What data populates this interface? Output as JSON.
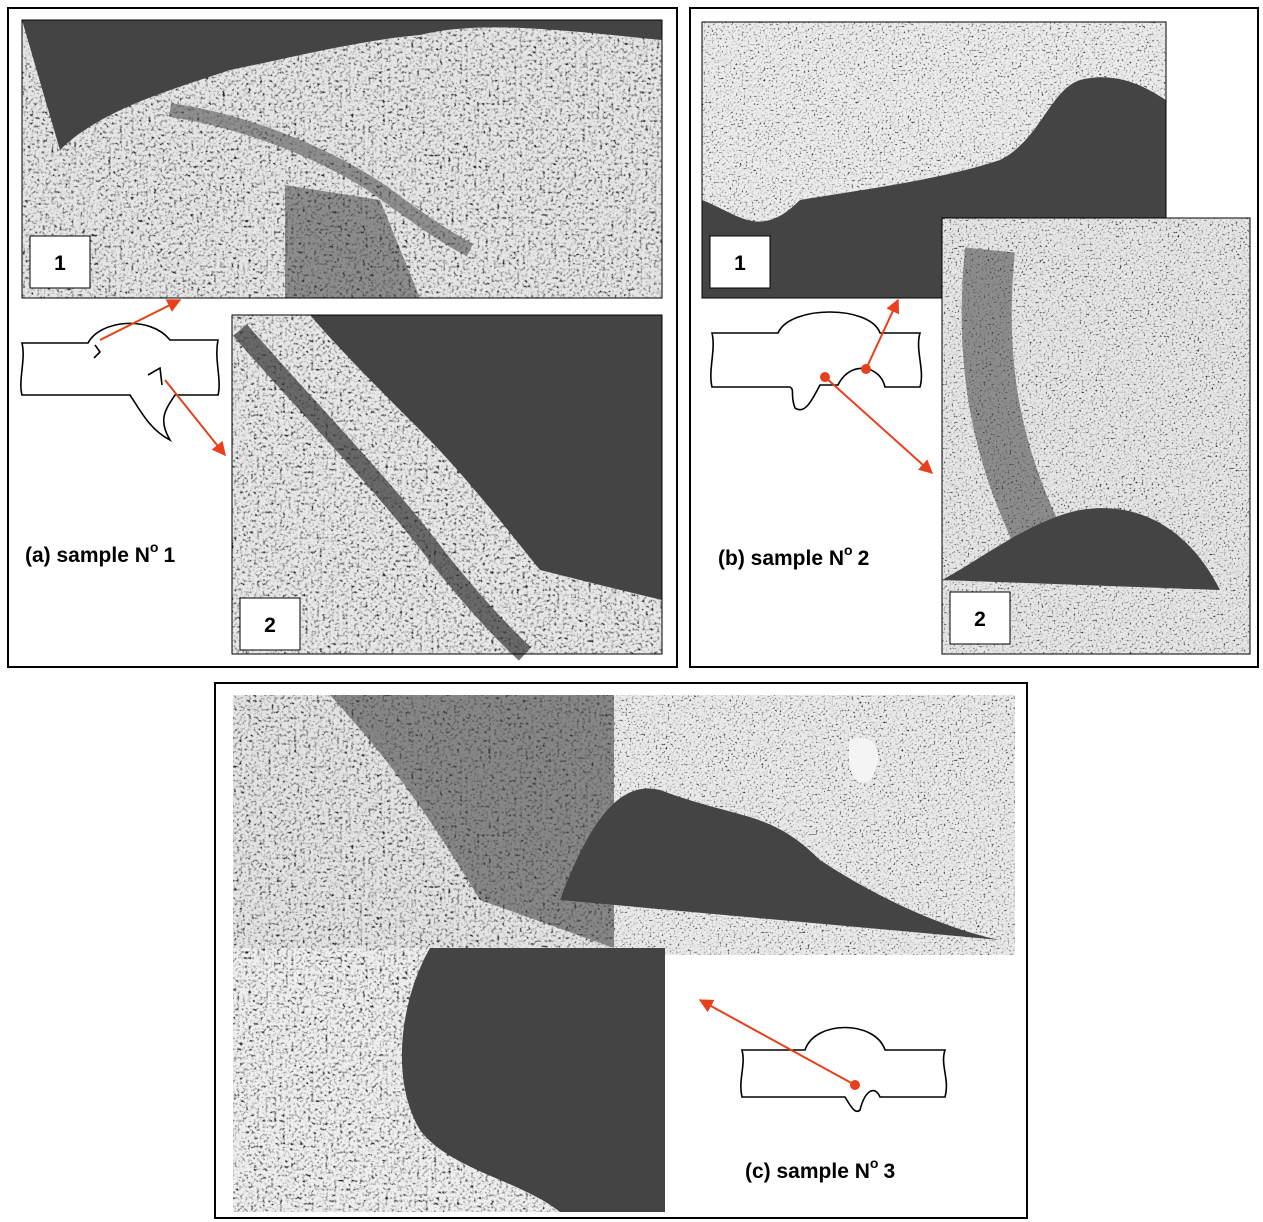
{
  "panels": [
    {
      "caption": {
        "prefix": "(a) sample N",
        "sup": "o",
        "number": "1"
      },
      "labels": [
        "1",
        "2"
      ]
    },
    {
      "caption": {
        "prefix": "(b) sample N",
        "sup": "o",
        "number": "2"
      },
      "labels": [
        "1",
        "2"
      ]
    },
    {
      "caption": {
        "prefix": "(c) sample N",
        "sup": "o",
        "number": "3"
      }
    }
  ]
}
